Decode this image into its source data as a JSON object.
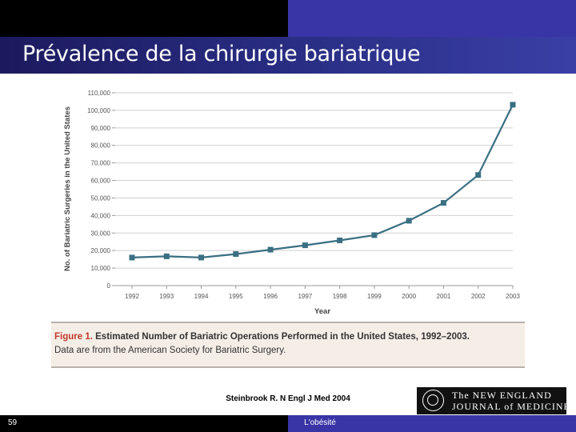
{
  "slide": {
    "title": "Prévalence de la chirurgie bariatrique",
    "source": "Steinbrook R. N Engl J Med 2004",
    "footer_left": "59",
    "footer_center": "L'obésité"
  },
  "caption": {
    "figure_label": "Figure 1.",
    "bold_text": "Estimated Number of Bariatric Operations Performed in the United States, 1992–2003.",
    "line2": "Data are from the American Society for Bariatric Surgery."
  },
  "logo": {
    "line1": "The NEW ENGLAND",
    "line2": "JOURNAL of MEDICINE"
  },
  "colors": {
    "series": "#3a6f82",
    "title_band": "#2a2f86",
    "figure_label": "#c0392b"
  },
  "chart_data": {
    "type": "line",
    "title": "",
    "xlabel": "Year",
    "ylabel": "No. of Bariatric Surgeries in the United States",
    "x": [
      "1992",
      "1993",
      "1994",
      "1995",
      "1996",
      "1997",
      "1998",
      "1999",
      "2000",
      "2001",
      "2002",
      "2003"
    ],
    "series": [
      {
        "values": [
          16000,
          16700,
          16000,
          18000,
          20500,
          23000,
          25800,
          28800,
          37000,
          47200,
          63100,
          103200
        ]
      }
    ],
    "ylim": [
      0,
      110000
    ],
    "yticks": [
      0,
      10000,
      20000,
      30000,
      40000,
      50000,
      60000,
      70000,
      80000,
      90000,
      100000,
      110000
    ],
    "ytick_labels": [
      "0",
      "10,000",
      "20,000",
      "30,000",
      "40,000",
      "50,000",
      "60,000",
      "70,000",
      "80,000",
      "90,000",
      "100,000",
      "110,000"
    ],
    "grid": true,
    "marker": "square"
  }
}
